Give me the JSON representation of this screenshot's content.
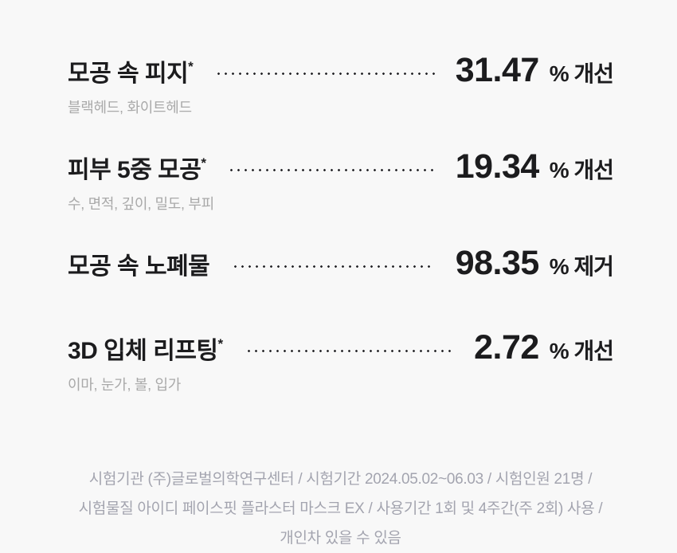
{
  "page": {
    "background_color": "#f8f8f8"
  },
  "colors": {
    "text_primary": "#1c1c1e",
    "text_subtitle": "#a9a9a9",
    "text_footnote": "#a3a4af",
    "dot_leader": "#26262a"
  },
  "results": {
    "rows": [
      {
        "title": "모공 속 피지",
        "asterisk": "*",
        "subtitle": "블랙헤드, 화이트헤드",
        "value": "31.47",
        "suffix": "% 개선"
      },
      {
        "title": "피부 5중 모공",
        "asterisk": "*",
        "subtitle": "수, 면적, 깊이, 밀도, 부피",
        "value": "19.34",
        "suffix": "% 개선"
      },
      {
        "title": "모공 속 노폐물",
        "value": "98.35",
        "suffix": "% 제거"
      },
      {
        "title": "3D 입체 리프팅",
        "asterisk": "*",
        "subtitle": "이마, 눈가, 볼, 입가",
        "value": "2.72",
        "suffix": "% 개선"
      }
    ]
  },
  "footer": {
    "lines": [
      "시험기관 (주)글로벌의학연구센터 / 시험기간 2024.05.02~06.03 / 시험인원 21명 /",
      "시험물질 아이디 페이스핏 플라스터 마스크 EX / 사용기간 1회 및 4주간(주 2회) 사용 /",
      "개인차 있을 수 있음"
    ]
  }
}
